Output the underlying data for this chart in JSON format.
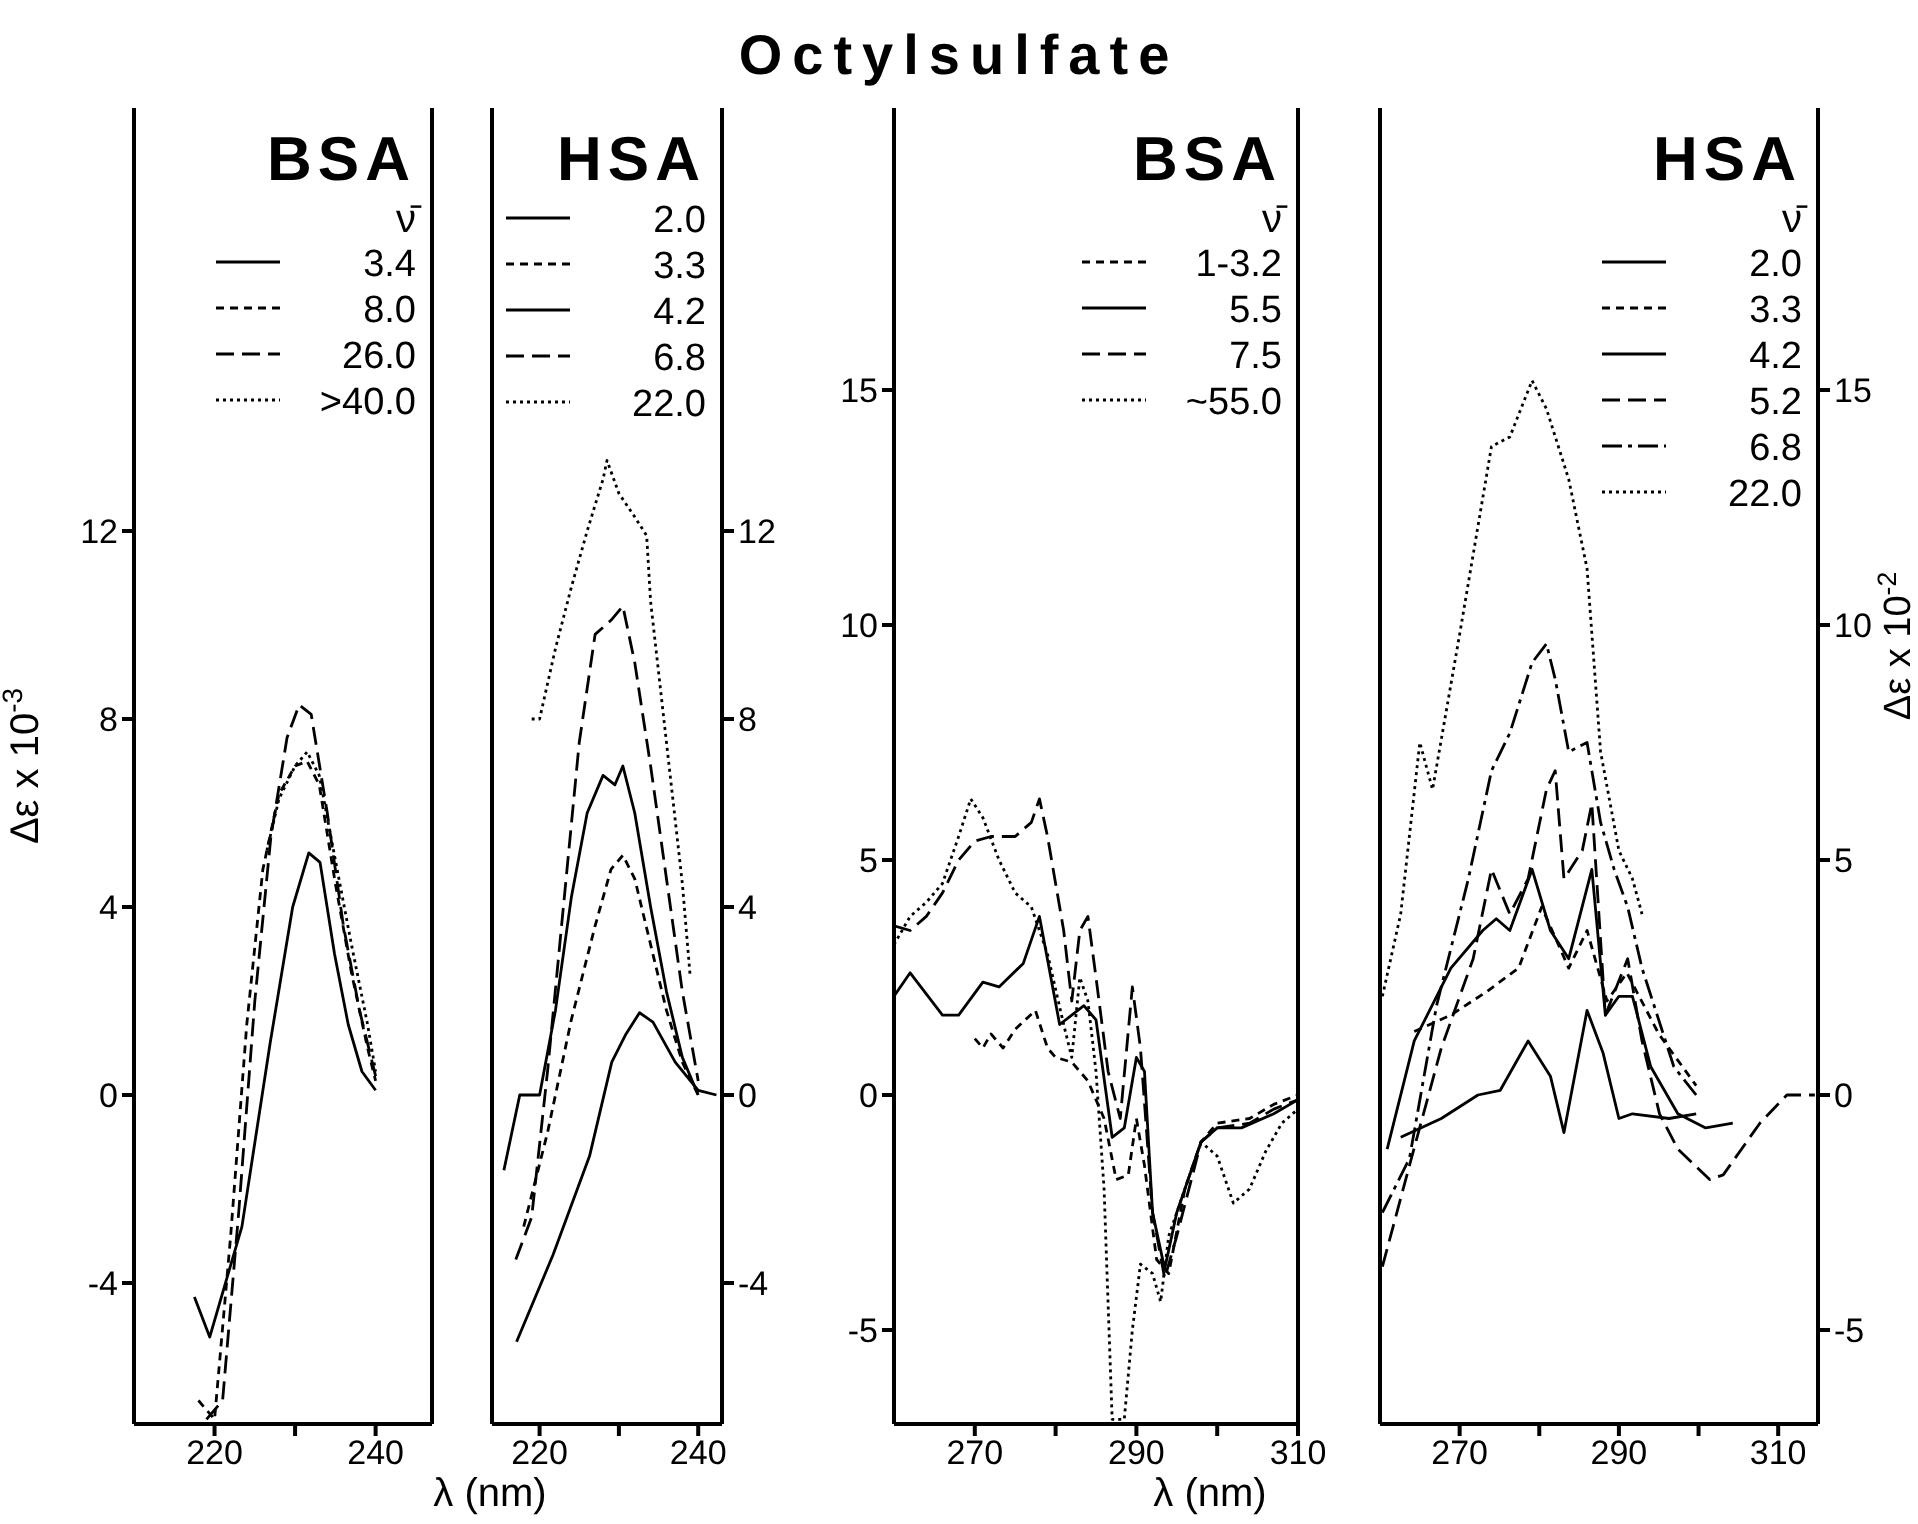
{
  "chart_data": [
    {
      "type": "line",
      "title": "BSA",
      "annotations": [
        "Octylsulfate"
      ],
      "xlabel": "λ (nm)",
      "ylabel": "Δε x 10$^{-3}$",
      "legend_title": "ν̄",
      "legend": "top right",
      "xlim": [
        210,
        247
      ],
      "xticks": [
        220,
        {
          "value": 230,
          "label": null
        },
        240
      ],
      "ylim": [
        -7,
        21
      ],
      "yticks": [
        -4,
        0,
        4,
        8,
        12
      ],
      "series": [
        {
          "name": "3.4",
          "color": "#000000",
          "line_style": "solid",
          "x": [
            217.5,
            219.4,
            223.4,
            226.9,
            229.7,
            231.7,
            233.1,
            234.9,
            236.6,
            238.3,
            240
          ],
          "values": [
            -4.3,
            -5.15,
            -2.8,
            1.1,
            4.0,
            5.15,
            4.95,
            3.0,
            1.5,
            0.5,
            0.1
          ]
        },
        {
          "name": "8.0",
          "color": "#000000",
          "line_style": "dashed",
          "x": [
            218,
            220,
            222,
            224,
            226,
            228,
            230,
            231.5,
            233,
            235,
            237,
            239,
            240
          ],
          "values": [
            -6.5,
            -6.9,
            -3,
            1.5,
            4.8,
            6.4,
            7.0,
            7.1,
            6.6,
            4.5,
            2.6,
            1.0,
            0.3
          ]
        },
        {
          "name": "26.0",
          "color": "#000000",
          "line_style": "dashed",
          "x": [
            219,
            221,
            223,
            225,
            227,
            229,
            230.5,
            232,
            234,
            236,
            238,
            240
          ],
          "values": [
            -6.9,
            -6.5,
            -2.5,
            2,
            5.5,
            7.6,
            8.3,
            8.1,
            6.0,
            3.6,
            1.8,
            0.4
          ]
        },
        {
          "name": ">40.0",
          "color": "#000000",
          "line_style": "dotted",
          "x": [
            226.5,
            228,
            230,
            231.5,
            233,
            235,
            237,
            239,
            240
          ],
          "values": [
            5.2,
            6.3,
            7.0,
            7.3,
            6.8,
            5.0,
            3.2,
            1.5,
            0.5
          ]
        }
      ]
    },
    {
      "type": "line",
      "title": "HSA",
      "legend": "top right",
      "xlim": [
        214,
        243
      ],
      "xticks": [
        220,
        {
          "value": 230,
          "label": null
        },
        240
      ],
      "y2lim": [
        -7,
        21
      ],
      "y2ticks": [
        -4,
        0,
        4,
        8,
        12
      ],
      "series": [
        {
          "name": "2.0",
          "color": "#000000",
          "line_style": "solid",
          "axis": "y2",
          "x": [
            217.1,
            221.7,
            226.3,
            229.1,
            230.9,
            232.6,
            234.3,
            237.1,
            240,
            242.3
          ],
          "values": [
            -5.25,
            -3.4,
            -1.3,
            0.7,
            1.3,
            1.75,
            1.55,
            0.7,
            0.1,
            0
          ]
        },
        {
          "name": "3.3",
          "color": "#000000",
          "line_style": "dashed",
          "axis": "y2",
          "x": [
            218,
            221,
            224,
            227,
            229,
            230.5,
            232,
            234,
            236,
            238,
            240
          ],
          "values": [
            -2.8,
            -0.8,
            1.6,
            3.6,
            4.8,
            5.1,
            4.6,
            3.2,
            1.8,
            0.7,
            0
          ]
        },
        {
          "name": "4.2",
          "color": "#000000",
          "line_style": "solid",
          "axis": "y2",
          "x": [
            215.5,
            217.5,
            220,
            222,
            224,
            226,
            228,
            229.5,
            230.5,
            232,
            234,
            236,
            238,
            240
          ],
          "values": [
            -1.6,
            0,
            0,
            1.8,
            4.2,
            6.0,
            6.8,
            6.6,
            7.0,
            6.0,
            4.0,
            2.2,
            0.8,
            0
          ]
        },
        {
          "name": "6.8",
          "color": "#000000",
          "line_style": "dashed",
          "axis": "y2",
          "x": [
            217,
            219,
            221,
            223,
            225,
            227,
            229,
            230.5,
            232,
            234,
            236,
            238,
            240
          ],
          "values": [
            -3.5,
            -2.6,
            0.5,
            4,
            7.5,
            9.8,
            10.1,
            10.4,
            9.2,
            7.0,
            4.6,
            2.2,
            0.3
          ]
        },
        {
          "name": "22.0",
          "color": "#000000",
          "line_style": "dotted",
          "axis": "y2",
          "x": [
            219,
            220,
            222,
            224,
            226,
            228,
            228.5,
            230,
            232,
            233.5,
            234,
            236,
            238,
            239
          ],
          "values": [
            8.0,
            8.0,
            9.5,
            10.8,
            12.0,
            13.1,
            13.5,
            12.8,
            12.3,
            11.9,
            10.5,
            7.5,
            4.5,
            2.5
          ]
        }
      ]
    },
    {
      "type": "line",
      "title": "BSA",
      "xlabel": "λ (nm)",
      "legend_title": "ν̄",
      "legend": "top right",
      "xlim": [
        260,
        310
      ],
      "xticks": [
        270,
        {
          "value": 280,
          "label": null
        },
        290,
        {
          "value": 300,
          "label": null
        },
        310
      ],
      "ylim": [
        -7,
        21
      ],
      "yticks": [
        -5,
        0,
        5,
        10,
        15
      ],
      "series": [
        {
          "name": "1-3.2",
          "color": "#000000",
          "line_style": "dashed",
          "x": [
            270,
            271,
            272,
            273.5,
            275,
            277.5,
            279,
            280,
            282,
            284,
            286,
            287.5,
            289,
            290,
            291,
            292.5,
            294,
            296,
            298,
            300,
            304,
            307,
            310
          ],
          "values": [
            1.2,
            1.0,
            1.3,
            1.0,
            1.4,
            1.8,
            1.0,
            0.8,
            0.7,
            0.3,
            -0.5,
            -1.8,
            -1.7,
            -0.5,
            -1.5,
            -3.5,
            -3.8,
            -2.0,
            -1.0,
            -0.6,
            -0.5,
            -0.2,
            0
          ]
        },
        {
          "name": "5.5",
          "color": "#000000",
          "line_style": "solid",
          "x": [
            260,
            262,
            266,
            268,
            271,
            273,
            276,
            278,
            280.5,
            283.5,
            285,
            287,
            288.5,
            290,
            291,
            292,
            293.5,
            295,
            298,
            300,
            303,
            307,
            310
          ],
          "values": [
            2.1,
            2.6,
            1.7,
            1.7,
            2.4,
            2.3,
            2.8,
            3.8,
            1.5,
            1.9,
            1.6,
            -0.9,
            -0.7,
            0.8,
            0.5,
            -2.5,
            -3.7,
            -2.5,
            -1.0,
            -0.7,
            -0.7,
            -0.4,
            -0.1
          ]
        },
        {
          "name": "7.5",
          "color": "#000000",
          "line_style": "dashed",
          "x": [
            260,
            262,
            264,
            266,
            268,
            270,
            272,
            275,
            277,
            278,
            279,
            281,
            282,
            283,
            284,
            285,
            286.5,
            288,
            289.5,
            290.5,
            292,
            293.5,
            295,
            298,
            300,
            304,
            307,
            310
          ],
          "values": [
            3.6,
            3.5,
            3.8,
            4.3,
            5.0,
            5.4,
            5.5,
            5.5,
            5.8,
            6.3,
            5.5,
            3.5,
            2.0,
            3.5,
            3.8,
            2.5,
            0.5,
            -0.5,
            2.3,
            1.0,
            -2.5,
            -3.9,
            -3.0,
            -1.0,
            -0.7,
            -0.6,
            -0.3,
            -0.1
          ]
        },
        {
          "name": "~55.0",
          "color": "#000000",
          "line_style": "dotted",
          "x": [
            260,
            262,
            264,
            266,
            268,
            269.5,
            271,
            273,
            275,
            277,
            279,
            281,
            282,
            283,
            284,
            285,
            286,
            287,
            288.5,
            289.5,
            290.5,
            292,
            293,
            294,
            296,
            298,
            300,
            302,
            304,
            306,
            308,
            310
          ],
          "values": [
            3.2,
            3.8,
            4.1,
            4.5,
            5.5,
            6.3,
            5.9,
            5.0,
            4.3,
            4.0,
            3.0,
            1.5,
            0.8,
            2.5,
            2.0,
            0.5,
            -2.0,
            -6.9,
            -6.9,
            -5,
            -3.6,
            -3.8,
            -4.4,
            -3.0,
            -2.0,
            -1.0,
            -1.3,
            -2.3,
            -2.0,
            -1.2,
            -0.6,
            -0.3
          ]
        }
      ]
    },
    {
      "type": "line",
      "title": "HSA",
      "y2label": "Δε x 10$^{-2}$",
      "legend_title": "ν̄",
      "legend": "top right",
      "xlim": [
        260,
        315
      ],
      "xticks": [
        270,
        {
          "value": 280,
          "label": null
        },
        290,
        {
          "value": 300,
          "label": null
        },
        310
      ],
      "y2lim": [
        -7,
        21
      ],
      "y2ticks": [
        -5,
        0,
        5,
        10,
        15
      ],
      "series": [
        {
          "name": "2.0",
          "color": "#000000",
          "line_style": "solid",
          "axis": "y2",
          "x": [
            262.6,
            267.7,
            272.3,
            275.1,
            278.6,
            281.4,
            283.1,
            286,
            288,
            290,
            291.7,
            296.3,
            299.7
          ],
          "values": [
            -0.9,
            -0.5,
            0,
            0.1,
            1.15,
            0.4,
            -0.8,
            1.8,
            0.9,
            -0.5,
            -0.4,
            -0.5,
            -0.4
          ]
        },
        {
          "name": "3.3",
          "color": "#000000",
          "line_style": "dashed",
          "axis": "y2",
          "x": [
            264.3,
            268.9,
            273.4,
            277.4,
            280.3,
            283.7,
            286,
            288.5,
            291,
            295,
            299.7
          ],
          "values": [
            1.35,
            1.7,
            2.2,
            2.7,
            4.0,
            2.7,
            3.5,
            2.0,
            2.6,
            1.3,
            0.2
          ]
        },
        {
          "name": "4.2",
          "color": "#000000",
          "line_style": "solid",
          "axis": "y2",
          "x": [
            260.9,
            264.3,
            268.9,
            272.9,
            274.6,
            276.3,
            279.1,
            281.4,
            283.7,
            286.6,
            288.3,
            290,
            291.7,
            294,
            297.4,
            300.9,
            304.3
          ],
          "values": [
            -1.15,
            1.15,
            2.7,
            3.5,
            3.75,
            3.5,
            4.8,
            3.5,
            2.9,
            4.8,
            1.7,
            2.1,
            2.1,
            0.6,
            -0.4,
            -0.7,
            -0.6
          ]
        },
        {
          "name": "5.2",
          "color": "#000000",
          "line_style": "dashed",
          "axis": "y2",
          "x": [
            260.3,
            263.7,
            267.7,
            271.7,
            274,
            276.3,
            278.6,
            280.9,
            282,
            283.1,
            285.4,
            286.6,
            288.3,
            291.1,
            292.9,
            295.1,
            297.4,
            301.4,
            303.1,
            307.7,
            311.1,
            314.6
          ],
          "values": [
            -3.65,
            -1.5,
            1.0,
            2.9,
            4.8,
            3.85,
            4.6,
            6.5,
            6.9,
            4.6,
            5.2,
            6.2,
            1.7,
            2.9,
            1.15,
            -0.4,
            -1.15,
            -1.8,
            -1.7,
            -0.6,
            0,
            0
          ]
        },
        {
          "name": "6.8",
          "color": "#000000",
          "line_style": "dashed",
          "axis": "y2",
          "x": [
            260.3,
            263.7,
            267.1,
            271.1,
            274,
            276.3,
            279.1,
            280.9,
            282,
            283.7,
            286,
            287.7,
            289.4,
            291.1,
            292.9,
            296.9,
            299.7
          ],
          "values": [
            -2.5,
            -1.35,
            1.9,
            4.6,
            6.9,
            7.7,
            9.2,
            9.6,
            8.85,
            7.3,
            7.5,
            5.8,
            4.8,
            4.0,
            2.7,
            0.6,
            0
          ]
        },
        {
          "name": "22.0",
          "color": "#000000",
          "line_style": "dotted",
          "axis": "y2",
          "x": [
            260.3,
            262.6,
            265,
            266.6,
            270,
            274,
            276.3,
            279.1,
            280.9,
            283.7,
            286,
            287.7,
            290,
            291.7,
            292.9
          ],
          "values": [
            2.1,
            3.85,
            7.5,
            6.5,
            9.8,
            13.8,
            14.0,
            15.2,
            14.6,
            13.1,
            11.2,
            7.3,
            5.2,
            4.6,
            3.85
          ]
        }
      ]
    }
  ]
}
